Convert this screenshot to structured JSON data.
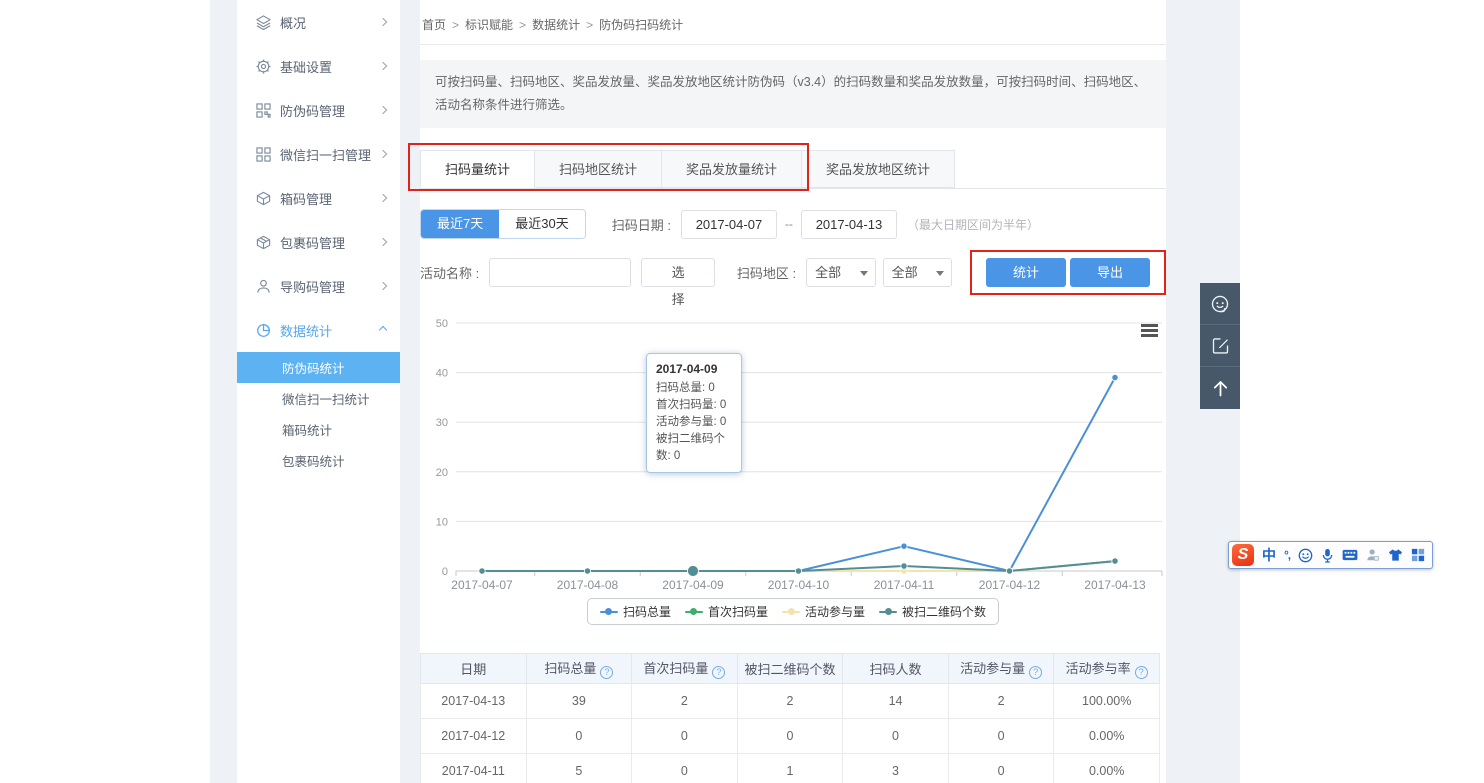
{
  "app": {
    "accent_color": "#4a95e5",
    "annotation_color": "#e2231a",
    "sidebar_active_bg": "#5db2f2",
    "float_toolbar_bg": "#46586a"
  },
  "sidebar": {
    "items": [
      {
        "icon": "layers-icon",
        "label": "概况"
      },
      {
        "icon": "gear-icon",
        "label": "基础设置"
      },
      {
        "icon": "qrcode-icon",
        "label": "防伪码管理"
      },
      {
        "icon": "qrcode-scan-icon",
        "label": "微信扫一扫管理"
      },
      {
        "icon": "box-icon",
        "label": "箱码管理"
      },
      {
        "icon": "package-icon",
        "label": "包裹码管理"
      },
      {
        "icon": "user-icon",
        "label": "导购码管理"
      },
      {
        "icon": "pie-chart-icon",
        "label": "数据统计",
        "expanded": true,
        "active": true
      }
    ],
    "submenu": [
      {
        "label": "防伪码统计",
        "active": true
      },
      {
        "label": "微信扫一扫统计",
        "active": false
      },
      {
        "label": "箱码统计",
        "active": false
      },
      {
        "label": "包裹码统计",
        "active": false
      }
    ]
  },
  "breadcrumb": {
    "separator": ">",
    "items": [
      "首页",
      "标识赋能",
      "数据统计",
      "防伪码扫码统计"
    ]
  },
  "description": "可按扫码量、扫码地区、奖品发放量、奖品发放地区统计防伪码（v3.4）的扫码数量和奖品发放数量，可按扫码时间、扫码地区、活动名称条件进行筛选。",
  "tabs": [
    {
      "label": "扫码量统计",
      "active": true
    },
    {
      "label": "扫码地区统计",
      "active": false
    },
    {
      "label": "奖品发放量统计",
      "active": false
    },
    {
      "label": "奖品发放地区统计",
      "active": false
    }
  ],
  "filters": {
    "quick_ranges": [
      {
        "label": "最近7天",
        "active": true
      },
      {
        "label": "最近30天",
        "active": false
      }
    ],
    "date_label": "扫码日期 :",
    "date_from": "2017-04-07",
    "date_separator": "--",
    "date_to": "2017-04-13",
    "date_hint": "（最大日期区间为半年）",
    "activity_label": "活动名称 :",
    "activity_value": "",
    "choose_button": "选择",
    "region_label": "扫码地区 :",
    "region_province": "全部",
    "region_city": "全部",
    "stat_button": "统计",
    "export_button": "导出"
  },
  "chart_data": {
    "type": "line",
    "x": [
      "2017-04-07",
      "2017-04-08",
      "2017-04-09",
      "2017-04-10",
      "2017-04-11",
      "2017-04-12",
      "2017-04-13"
    ],
    "series": [
      {
        "name": "扫码总量",
        "color": "#4a90d9",
        "values": [
          0,
          0,
          0,
          0,
          5,
          0,
          39
        ]
      },
      {
        "name": "首次扫码量",
        "color": "#3caf6f",
        "values": [
          0,
          0,
          0,
          0,
          0,
          0,
          2
        ]
      },
      {
        "name": "活动参与量",
        "color": "#f3e3ae",
        "values": [
          0,
          0,
          0,
          0,
          0,
          0,
          2
        ]
      },
      {
        "name": "被扫二维码个数",
        "color": "#538e94",
        "values": [
          0,
          0,
          0,
          0,
          1,
          0,
          2
        ]
      }
    ],
    "ylim": [
      0,
      50
    ],
    "yticks": [
      0,
      10,
      20,
      30,
      40,
      50
    ],
    "grid": true,
    "legend_position": "bottom",
    "hover": {
      "series": 3,
      "index": 2
    }
  },
  "tooltip": {
    "title": "2017-04-09",
    "lines": [
      "扫码总量: 0",
      "首次扫码量: 0",
      "活动参与量: 0",
      "被扫二维码个数: 0"
    ]
  },
  "table": {
    "columns": [
      {
        "label": "日期",
        "help": false
      },
      {
        "label": "扫码总量",
        "help": true
      },
      {
        "label": "首次扫码量",
        "help": true
      },
      {
        "label": "被扫二维码个数",
        "help": false
      },
      {
        "label": "扫码人数",
        "help": false
      },
      {
        "label": "活动参与量",
        "help": true
      },
      {
        "label": "活动参与率",
        "help": true
      }
    ],
    "help_glyph": "?",
    "rows": [
      [
        "2017-04-13",
        "39",
        "2",
        "2",
        "14",
        "2",
        "100.00%"
      ],
      [
        "2017-04-12",
        "0",
        "0",
        "0",
        "0",
        "0",
        "0.00%"
      ],
      [
        "2017-04-11",
        "5",
        "0",
        "1",
        "3",
        "0",
        "0.00%"
      ]
    ]
  },
  "float_toolbar": {
    "buttons": [
      "customer-service-icon",
      "feedback-edit-icon",
      "back-to-top-icon"
    ]
  },
  "ime": {
    "logo": "S",
    "chinese_mode": "中",
    "punctuation": "°,",
    "icons": [
      "sogou-logo",
      "chinese-mode-icon",
      "punctuation-icon",
      "emoji-icon",
      "mic-icon",
      "keyboard-icon",
      "user-ime-icon",
      "skin-icon",
      "grid-icon"
    ]
  }
}
